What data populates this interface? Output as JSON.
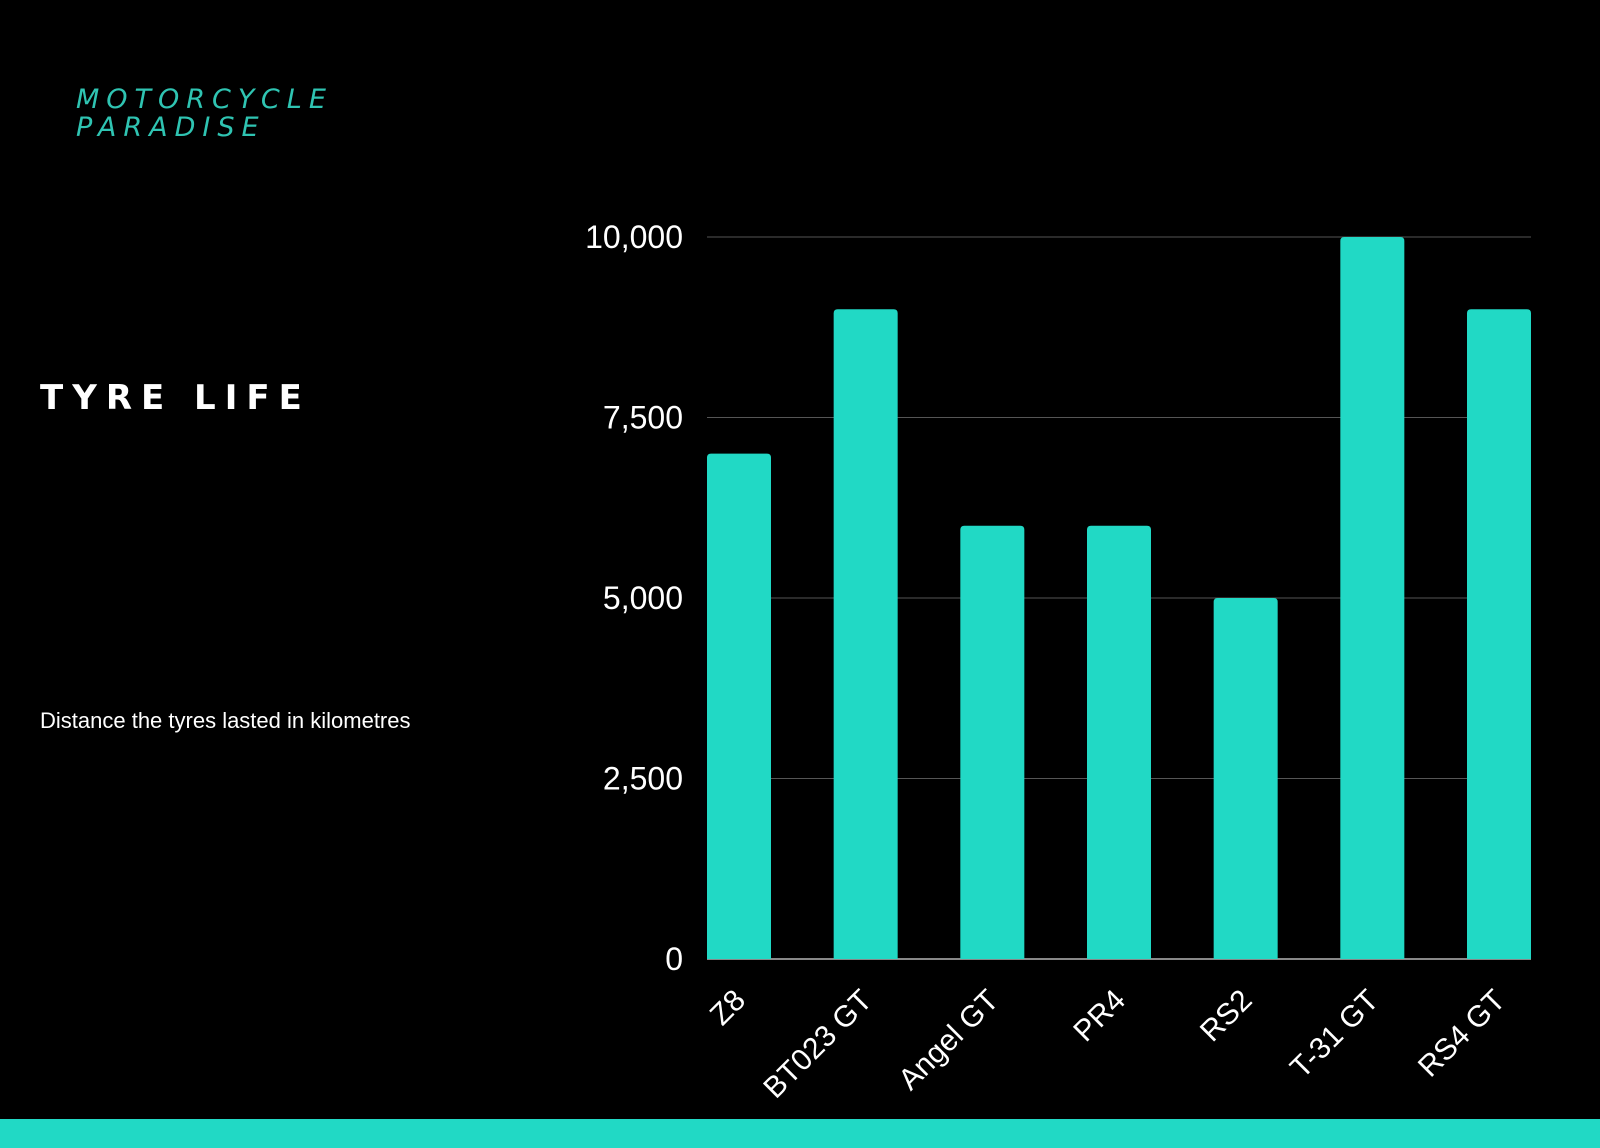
{
  "brand": {
    "line1": "MOTORCYCLE",
    "line2": "PARADISE"
  },
  "header": {
    "title": "TYRE LIFE",
    "subtitle": "Distance the tyres lasted in kilometres"
  },
  "colors": {
    "accent": "#21d9c5",
    "brand_text": "#2fc4b2",
    "background": "#000000",
    "text": "#ffffff",
    "grid": "#555555",
    "axis": "#888888"
  },
  "chart_data": {
    "type": "bar",
    "categories": [
      "Z8",
      "BT023 GT",
      "Angel GT",
      "PR4",
      "RS2",
      "T-31 GT",
      "RS4 GT"
    ],
    "values": [
      7000,
      9000,
      6000,
      6000,
      5000,
      10000,
      9000
    ],
    "ylim": [
      0,
      10000
    ],
    "yticks": [
      0,
      2500,
      5000,
      7500,
      10000
    ],
    "ytick_labels": [
      "0",
      "2,500",
      "5,000",
      "7,500",
      "10,000"
    ],
    "grid": true,
    "legend": "none"
  }
}
